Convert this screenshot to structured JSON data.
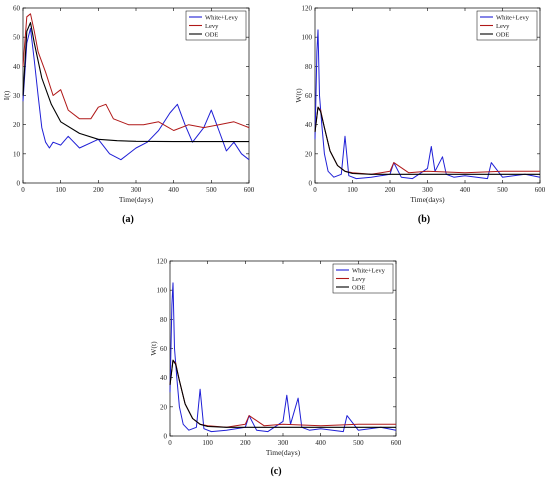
{
  "colors": {
    "white_levy": "#1f1fd6",
    "levy": "#b01818",
    "ode": "#000000"
  },
  "chart_data": [
    {
      "type": "line",
      "panel": "a",
      "caption": "(a)",
      "xlabel": "Time(days)",
      "ylabel": "I(t)",
      "xlim": [
        0,
        600
      ],
      "ylim": [
        0,
        60
      ],
      "xticks": [
        "0",
        "100",
        "200",
        "300",
        "400",
        "500",
        "600"
      ],
      "yticks": [
        "0",
        "10",
        "20",
        "30",
        "40",
        "50",
        "60"
      ],
      "legend_position": "top-right",
      "series": [
        {
          "name": "White+Levy",
          "color": "#1f1fd6",
          "x": [
            0,
            10,
            20,
            30,
            40,
            50,
            60,
            70,
            80,
            100,
            120,
            150,
            200,
            230,
            260,
            300,
            330,
            360,
            390,
            410,
            430,
            450,
            480,
            500,
            520,
            540,
            560,
            580,
            600
          ],
          "y": [
            28,
            48,
            53,
            42,
            30,
            19,
            14,
            12,
            14,
            13,
            16,
            12,
            15,
            10,
            8,
            12,
            14,
            18,
            24,
            27,
            20,
            14,
            19,
            25,
            18,
            11,
            14,
            10,
            8
          ]
        },
        {
          "name": "Levy",
          "color": "#b01818",
          "x": [
            0,
            10,
            20,
            30,
            40,
            60,
            80,
            100,
            120,
            150,
            180,
            200,
            220,
            240,
            280,
            320,
            360,
            400,
            440,
            480,
            520,
            560,
            600
          ],
          "y": [
            40,
            57,
            58,
            52,
            45,
            38,
            30,
            32,
            25,
            22,
            22,
            26,
            27,
            22,
            20,
            20,
            21,
            18,
            20,
            19,
            20,
            21,
            19
          ]
        },
        {
          "name": "ODE",
          "color": "#000000",
          "x": [
            0,
            10,
            20,
            30,
            50,
            75,
            100,
            150,
            200,
            250,
            300,
            400,
            500,
            600
          ],
          "y": [
            30,
            52,
            55,
            48,
            36,
            27,
            21,
            17,
            15,
            14.5,
            14.3,
            14.2,
            14.2,
            14.2
          ]
        }
      ]
    },
    {
      "type": "line",
      "panel": "b",
      "caption": "(b)",
      "xlabel": "Time(days)",
      "ylabel": "W(t)",
      "xlim": [
        0,
        600
      ],
      "ylim": [
        0,
        120
      ],
      "xticks": [
        "0",
        "100",
        "200",
        "300",
        "400",
        "500",
        "600"
      ],
      "yticks": [
        "0",
        "20",
        "40",
        "60",
        "80",
        "100",
        "120"
      ],
      "legend_position": "top-right",
      "series": [
        {
          "name": "White+Levy",
          "color": "#1f1fd6",
          "x": [
            0,
            5,
            8,
            12,
            18,
            25,
            35,
            50,
            70,
            80,
            90,
            110,
            150,
            200,
            210,
            230,
            260,
            300,
            310,
            320,
            340,
            350,
            370,
            400,
            460,
            470,
            500,
            560,
            600
          ],
          "y": [
            30,
            90,
            105,
            60,
            40,
            20,
            8,
            4,
            6,
            32,
            5,
            3,
            4,
            6,
            14,
            4,
            3,
            10,
            25,
            8,
            18,
            6,
            4,
            5,
            3,
            14,
            4,
            6,
            4
          ]
        },
        {
          "name": "Levy",
          "color": "#b01818",
          "x": [
            0,
            8,
            15,
            25,
            40,
            60,
            80,
            100,
            150,
            200,
            210,
            250,
            300,
            400,
            500,
            600
          ],
          "y": [
            35,
            52,
            50,
            38,
            22,
            12,
            8,
            7,
            6,
            8,
            14,
            7,
            8,
            7,
            8,
            8
          ]
        },
        {
          "name": "ODE",
          "color": "#000000",
          "x": [
            0,
            8,
            15,
            25,
            40,
            60,
            80,
            100,
            150,
            200,
            300,
            400,
            500,
            600
          ],
          "y": [
            35,
            52,
            49,
            38,
            22,
            12,
            8,
            6.5,
            6,
            6,
            6,
            6,
            6,
            6
          ]
        }
      ]
    },
    {
      "type": "line",
      "panel": "c",
      "caption": "(c)",
      "xlabel": "Time(days)",
      "ylabel": "W(t)",
      "xlim": [
        0,
        600
      ],
      "ylim": [
        0,
        120
      ],
      "xticks": [
        "0",
        "100",
        "200",
        "300",
        "400",
        "500",
        "600"
      ],
      "yticks": [
        "0",
        "20",
        "40",
        "60",
        "80",
        "100",
        "120"
      ],
      "legend_position": "top-right",
      "series": [
        {
          "name": "White+Levy",
          "color": "#1f1fd6",
          "x": [
            0,
            5,
            8,
            12,
            18,
            25,
            35,
            50,
            70,
            80,
            90,
            110,
            150,
            200,
            210,
            230,
            260,
            300,
            310,
            320,
            340,
            350,
            370,
            400,
            460,
            470,
            500,
            560,
            600
          ],
          "y": [
            30,
            90,
            105,
            60,
            40,
            20,
            8,
            4,
            6,
            32,
            5,
            3,
            4,
            6,
            14,
            4,
            3,
            10,
            28,
            8,
            26,
            6,
            4,
            5,
            3,
            14,
            4,
            6,
            4
          ]
        },
        {
          "name": "Levy",
          "color": "#b01818",
          "x": [
            0,
            8,
            15,
            25,
            40,
            60,
            80,
            100,
            150,
            200,
            210,
            250,
            300,
            400,
            500,
            600
          ],
          "y": [
            35,
            52,
            50,
            38,
            22,
            12,
            8,
            7,
            6,
            8,
            14,
            7,
            8,
            7,
            8,
            8
          ]
        },
        {
          "name": "ODE",
          "color": "#000000",
          "x": [
            0,
            8,
            15,
            25,
            40,
            60,
            80,
            100,
            150,
            200,
            300,
            400,
            500,
            600
          ],
          "y": [
            35,
            52,
            49,
            38,
            22,
            12,
            8,
            6.5,
            6,
            6,
            6,
            6,
            6,
            6
          ]
        }
      ]
    }
  ]
}
